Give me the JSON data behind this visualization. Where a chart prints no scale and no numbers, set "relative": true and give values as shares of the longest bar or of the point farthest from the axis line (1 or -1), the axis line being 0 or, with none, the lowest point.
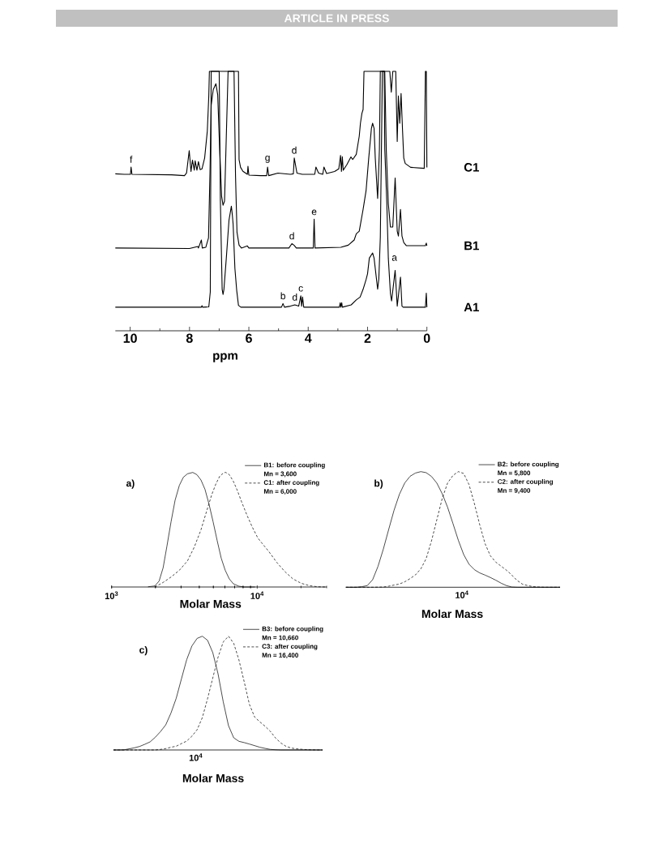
{
  "chart_data": [
    {
      "type": "line",
      "relative": true,
      "xlabel": "ppm",
      "xlim": [
        10.5,
        0
      ],
      "xticks": [
        10,
        {
          "value": 9,
          "label": null
        },
        8,
        {
          "value": 7,
          "label": null
        },
        6,
        {
          "value": 5,
          "label": null
        },
        4,
        {
          "value": 3,
          "label": null
        },
        2,
        {
          "value": 1,
          "label": null
        },
        0
      ],
      "series": [
        {
          "name": "C1",
          "color": "#000000",
          "x": [
            10.5,
            10.2,
            9.99,
            9.97,
            9.94,
            8.6,
            8.17,
            8.1,
            8.01,
            7.95,
            7.9,
            7.84,
            7.81,
            7.75,
            7.7,
            7.64,
            7.58,
            7.49,
            7.4,
            7.35,
            7.33,
            6.35,
            6.33,
            6.28,
            6.2,
            6.05,
            6.03,
            6.0,
            5.6,
            5.4,
            5.37,
            5.33,
            5.02,
            4.6,
            4.5,
            4.47,
            4.38,
            4.2,
            3.78,
            3.74,
            3.65,
            3.51,
            3.47,
            3.38,
            3.11,
            2.97,
            2.91,
            2.88,
            2.85,
            2.82,
            2.7,
            2.56,
            2.5,
            2.38,
            2.28,
            2.24,
            2.19,
            2.15,
            2.12,
            1.25,
            1.2,
            1.15,
            1.05,
            1.0,
            0.96,
            0.915,
            0.87,
            0.82,
            0.78,
            0.73,
            0.55,
            0.09,
            0.05,
            0.02,
            0.0
          ],
          "values": [
            0.605,
            0.603,
            0.603,
            0.631,
            0.603,
            0.601,
            0.598,
            0.608,
            0.694,
            0.614,
            0.658,
            0.619,
            0.655,
            0.619,
            0.652,
            0.621,
            0.624,
            0.666,
            0.77,
            0.906,
            1.0,
            1.0,
            0.66,
            0.63,
            0.615,
            0.603,
            0.634,
            0.6,
            0.598,
            0.598,
            0.631,
            0.598,
            0.608,
            0.603,
            0.605,
            0.666,
            0.608,
            0.603,
            0.603,
            0.631,
            0.608,
            0.603,
            0.631,
            0.606,
            0.614,
            0.624,
            0.676,
            0.614,
            0.671,
            0.619,
            0.64,
            0.67,
            0.66,
            0.68,
            0.75,
            0.8,
            0.838,
            0.853,
            1.0,
            1.0,
            0.92,
            1.0,
            1.0,
            0.73,
            0.905,
            0.8,
            0.915,
            0.77,
            0.666,
            0.645,
            0.63,
            0.626,
            1.0,
            1.0,
            0.63
          ]
        },
        {
          "name": "B1",
          "color": "#000000",
          "x": [
            10.5,
            8.0,
            7.72,
            7.7,
            7.6,
            7.57,
            7.45,
            7.36,
            7.31,
            7.27,
            7.2,
            7.11,
            7.05,
            7.0,
            6.92,
            6.87,
            6.82,
            6.76,
            6.7,
            6.5,
            6.45,
            6.4,
            6.33,
            6.25,
            6.05,
            6.0,
            4.65,
            4.55,
            4.48,
            4.4,
            3.83,
            3.8,
            3.77,
            2.9,
            2.65,
            2.45,
            2.38,
            2.28,
            2.15,
            2.05,
            1.96,
            1.87,
            1.83,
            1.78,
            1.74,
            1.66,
            1.6,
            1.57,
            1.42,
            1.37,
            1.3,
            1.23,
            1.15,
            1.07,
            1.0,
            0.96,
            0.89,
            0.84,
            0.78,
            0.69,
            0.05,
            0.02,
            0.0
          ],
          "values": [
            0.319,
            0.317,
            0.325,
            0.319,
            0.35,
            0.319,
            0.322,
            0.358,
            0.608,
            0.869,
            0.93,
            0.952,
            0.91,
            0.75,
            0.52,
            0.484,
            0.5,
            0.75,
            1.0,
            1.0,
            0.6,
            0.38,
            0.33,
            0.319,
            0.327,
            0.319,
            0.319,
            0.336,
            0.33,
            0.319,
            0.319,
            0.43,
            0.319,
            0.322,
            0.33,
            0.35,
            0.374,
            0.384,
            0.468,
            0.54,
            0.666,
            0.78,
            0.8,
            0.78,
            0.666,
            0.51,
            0.7,
            1.0,
            1.0,
            0.7,
            0.49,
            0.4,
            0.4,
            0.589,
            0.384,
            0.365,
            0.468,
            0.365,
            0.34,
            0.328,
            0.328,
            0.338,
            0.328
          ]
        },
        {
          "name": "A1",
          "color": "#000000",
          "x": [
            10.5,
            7.6,
            7.58,
            7.56,
            7.35,
            7.3,
            7.27,
            7.0,
            6.96,
            6.9,
            6.87,
            6.84,
            6.76,
            6.67,
            6.59,
            6.56,
            6.53,
            6.47,
            6.41,
            6.35,
            6.27,
            4.9,
            4.85,
            4.8,
            4.6,
            4.45,
            4.32,
            4.25,
            4.22,
            4.19,
            4.15,
            2.95,
            2.92,
            2.9,
            2.87,
            2.85,
            2.55,
            2.38,
            2.25,
            2.15,
            2.05,
            2.0,
            1.94,
            1.83,
            1.78,
            1.72,
            1.66,
            1.62,
            1.57,
            1.5,
            1.44,
            1.42,
            1.35,
            1.3,
            1.23,
            1.19,
            1.07,
            1.0,
            0.89,
            0.84,
            0.8,
            0.05,
            0.02,
            0.0
          ],
          "values": [
            0.091,
            0.091,
            0.097,
            0.091,
            0.092,
            0.15,
            1.0,
            1.0,
            0.5,
            0.16,
            0.14,
            0.16,
            0.28,
            0.426,
            0.48,
            0.45,
            0.41,
            0.24,
            0.156,
            0.098,
            0.091,
            0.091,
            0.105,
            0.091,
            0.095,
            0.1,
            0.095,
            0.135,
            0.095,
            0.13,
            0.091,
            0.091,
            0.108,
            0.091,
            0.108,
            0.091,
            0.1,
            0.119,
            0.13,
            0.16,
            0.197,
            0.22,
            0.28,
            0.3,
            0.28,
            0.22,
            0.16,
            0.2,
            0.36,
            1.0,
            1.0,
            0.7,
            0.49,
            0.28,
            0.145,
            0.115,
            0.233,
            0.095,
            0.207,
            0.095,
            0.091,
            0.091,
            0.145,
            0.091
          ]
        }
      ],
      "annotations": [
        {
          "text": "f",
          "x": 9.97,
          "y": 0.631
        },
        {
          "text": "g",
          "x": 5.37,
          "y": 0.631
        },
        {
          "text": "d",
          "x": 4.47,
          "y": 0.666
        },
        {
          "text": "e",
          "x": 3.8,
          "y": 0.43
        },
        {
          "text": "d",
          "x": 4.55,
          "y": 0.336
        },
        {
          "text": "a",
          "x": 1.3,
          "y": 0.28
        },
        {
          "text": "b",
          "x": 4.85,
          "y": 0.105
        },
        {
          "text": "d",
          "x": 4.45,
          "y": 0.1
        },
        {
          "text": "c",
          "x": 4.25,
          "y": 0.135
        },
        "ARTICLE IN PRESS"
      ]
    },
    {
      "type": "line",
      "relative": true,
      "title": "a)",
      "xlabel": "Molar Mass",
      "log": "x",
      "xlim": [
        1000,
        30000
      ],
      "xticks": [
        {
          "value": 1000,
          "label": "10$^{3}$"
        },
        {
          "value": 2000,
          "label": null
        },
        {
          "value": 3000,
          "label": null
        },
        {
          "value": 4000,
          "label": null
        },
        {
          "value": 5000,
          "label": null
        },
        {
          "value": 6000,
          "label": null
        },
        {
          "value": 7000,
          "label": null
        },
        {
          "value": 8000,
          "label": null
        },
        {
          "value": 9000,
          "label": null
        },
        {
          "value": 10000,
          "label": "10$^{4}$"
        },
        {
          "value": 20000,
          "label": null
        },
        {
          "value": 30000,
          "label": null
        }
      ],
      "legend": "top right",
      "series": [
        {
          "name": "B1: before coupling",
          "color": "#000000",
          "line_style": "solid",
          "x": [
            1780,
            1980,
            2120,
            2260,
            2400,
            2560,
            2730,
            2920,
            3110,
            3320,
            3610,
            3850,
            4110,
            4380,
            4670,
            4980,
            5310,
            5660,
            6030,
            6430,
            6860,
            7480,
            8140,
            9660
          ],
          "values": [
            0.002,
            0.009,
            0.052,
            0.169,
            0.358,
            0.569,
            0.758,
            0.887,
            0.958,
            0.988,
            1.0,
            0.981,
            0.934,
            0.852,
            0.722,
            0.569,
            0.405,
            0.252,
            0.146,
            0.071,
            0.028,
            0.007,
            0,
            0
          ]
        },
        {
          "name": "C1: after coupling",
          "color": "#000000",
          "line_style": "dashed",
          "x": [
            1980,
            2260,
            2560,
            2920,
            3320,
            3690,
            4110,
            4470,
            4870,
            5200,
            5540,
            5910,
            6090,
            6430,
            6860,
            7320,
            7800,
            8500,
            9260,
            10100,
            11000,
            12000,
            13600,
            15500,
            17600,
            20000,
            22800,
            25900,
            29400
          ],
          "values": [
            0,
            0.04,
            0.087,
            0.146,
            0.228,
            0.346,
            0.499,
            0.652,
            0.805,
            0.899,
            0.969,
            0.998,
            1.0,
            0.981,
            0.922,
            0.84,
            0.746,
            0.628,
            0.522,
            0.428,
            0.369,
            0.311,
            0.216,
            0.134,
            0.071,
            0.033,
            0.012,
            0.002,
            0
          ]
        }
      ],
      "annotations": [
        "Mn = 3,600",
        "Mn = 6,000"
      ]
    },
    {
      "type": "line",
      "relative": true,
      "title": "b)",
      "xlabel": "Molar Mass",
      "categories": [
        null,
        null,
        null,
        null,
        null,
        null,
        null,
        null,
        null,
        null,
        null,
        null,
        null,
        null,
        null,
        null,
        null,
        null,
        null,
        null,
        null,
        null,
        null,
        null,
        null,
        null,
        null,
        null,
        null,
        null,
        null,
        null,
        null,
        null,
        null,
        null,
        null,
        null,
        null,
        null,
        null
      ],
      "legend": "top right",
      "series": [
        {
          "name": "B2: before coupling",
          "color": "#000000",
          "line_style": "solid",
          "values": [
            0,
            0,
            0,
            0.005,
            0.014,
            0.065,
            0.18,
            0.33,
            0.5,
            0.666,
            0.804,
            0.902,
            0.96,
            0.988,
            1.0,
            0.991,
            0.958,
            0.9,
            0.808,
            0.692,
            0.551,
            0.407,
            0.283,
            0.199,
            0.152,
            0.124,
            0.105,
            0.084,
            0.061,
            0.035,
            0.014,
            0.002,
            0,
            0,
            0,
            0,
            0,
            0,
            0,
            0,
            0
          ]
        },
        {
          "name": "C2: after coupling",
          "color": "#000000",
          "line_style": "dashed",
          "values": [
            0,
            0,
            0,
            0,
            0,
            0,
            0.001,
            0.002,
            0.009,
            0.019,
            0.028,
            0.047,
            0.075,
            0.107,
            0.159,
            0.248,
            0.402,
            0.586,
            0.769,
            0.902,
            0.967,
            1.0,
            0.984,
            0.888,
            0.724,
            0.54,
            0.376,
            0.271,
            0.217,
            0.182,
            0.147,
            0.105,
            0.058,
            0.026,
            0.014,
            0.005,
            0.002,
            0,
            0,
            0,
            0
          ]
        }
      ],
      "annotations": [
        "Mn = 5,800",
        "Mn = 9,400",
        "10$^{4}$"
      ]
    },
    {
      "type": "line",
      "relative": true,
      "title": "c)",
      "xlabel": "Molar Mass",
      "categories": [
        null,
        null,
        null,
        null,
        null,
        null,
        null,
        null,
        null,
        null,
        null,
        null,
        null,
        null,
        null,
        null,
        null,
        null,
        null,
        null,
        null,
        null,
        null,
        null,
        null,
        null,
        null,
        null,
        null,
        null,
        null,
        null,
        null,
        null,
        null,
        null,
        null,
        null,
        null,
        null,
        null
      ],
      "legend": "top right",
      "series": [
        {
          "name": "B3: before coupling",
          "color": "#000000",
          "line_style": "solid",
          "values": [
            0,
            0,
            0.001,
            0.01,
            0.019,
            0.031,
            0.05,
            0.071,
            0.112,
            0.162,
            0.221,
            0.325,
            0.454,
            0.625,
            0.793,
            0.914,
            0.981,
            1.0,
            0.964,
            0.855,
            0.67,
            0.423,
            0.214,
            0.107,
            0.076,
            0.065,
            0.052,
            0.038,
            0.024,
            0.014,
            0.005,
            0.002,
            0,
            0,
            0,
            0,
            0,
            0,
            0,
            0,
            0
          ]
        },
        {
          "name": "C3: after coupling",
          "color": "#000000",
          "line_style": "dashed",
          "values": [
            0,
            0,
            0,
            0,
            0,
            0,
            0,
            0,
            0,
            0.005,
            0.012,
            0.024,
            0.033,
            0.056,
            0.078,
            0.121,
            0.178,
            0.285,
            0.451,
            0.634,
            0.815,
            0.95,
            1.0,
            0.938,
            0.791,
            0.601,
            0.401,
            0.29,
            0.247,
            0.209,
            0.164,
            0.105,
            0.062,
            0.032,
            0.017,
            0.01,
            0.006,
            0.003,
            0.001,
            0,
            0
          ]
        }
      ],
      "annotations": [
        "Mn = 10,660",
        "Mn = 16,400",
        "10$^{4}$"
      ]
    }
  ]
}
